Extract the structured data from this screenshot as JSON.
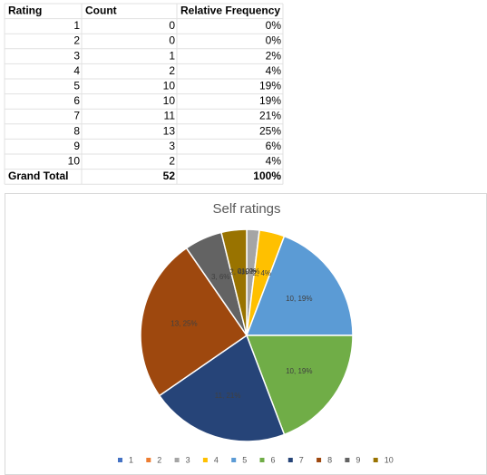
{
  "table": {
    "header": [
      "Rating",
      "Count",
      "Relative Frequency"
    ],
    "rows": [
      [
        1,
        0,
        "0%"
      ],
      [
        2,
        0,
        "0%"
      ],
      [
        3,
        1,
        "2%"
      ],
      [
        4,
        2,
        "4%"
      ],
      [
        5,
        10,
        "19%"
      ],
      [
        6,
        10,
        "19%"
      ],
      [
        7,
        11,
        "21%"
      ],
      [
        8,
        13,
        "25%"
      ],
      [
        9,
        3,
        "6%"
      ],
      [
        10,
        2,
        "4%"
      ]
    ],
    "total": [
      "Grand Total",
      52,
      "100%"
    ]
  },
  "chart_data": {
    "type": "pie",
    "title": "Self ratings",
    "categories": [
      "1",
      "2",
      "3",
      "4",
      "5",
      "6",
      "7",
      "8",
      "9",
      "10"
    ],
    "values": [
      0,
      0,
      1,
      2,
      10,
      10,
      11,
      13,
      3,
      2
    ],
    "value_labels": [
      "0, 0%",
      "0, 0%",
      "1, 2%",
      "2, 4%",
      "10, 19%",
      "10, 19%",
      "11, 21%",
      "13, 25%",
      "3, 6%",
      "2, 4%"
    ],
    "colors": [
      "#4472C4",
      "#ED7D31",
      "#A5A5A5",
      "#FFC000",
      "#5B9BD5",
      "#70AD47",
      "#264478",
      "#9E480E",
      "#636363",
      "#997300"
    ]
  }
}
